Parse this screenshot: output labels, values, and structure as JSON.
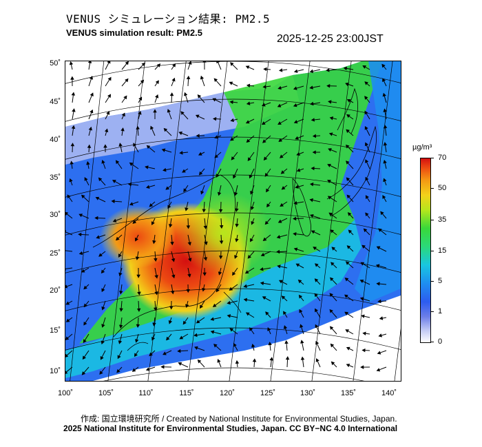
{
  "title_jp": "VENUS シミュレーション結果: PM2.5",
  "title_en": "VENUS simulation result: PM2.5",
  "timestamp": "2025-12-25 23:00JST",
  "lat_labels": [
    "50˚",
    "45˚",
    "40˚",
    "35˚",
    "30˚",
    "25˚",
    "20˚",
    "15˚",
    "10˚"
  ],
  "lon_labels": [
    "100˚",
    "105˚",
    "110˚",
    "115˚",
    "120˚",
    "125˚",
    "130˚",
    "135˚",
    "140˚"
  ],
  "colorbar": {
    "unit": "µg/m³",
    "ticks": [
      "70",
      "50",
      "35",
      "15",
      "5",
      "1",
      "0"
    ],
    "colors": [
      "#d41010",
      "#f49a14",
      "#f2d21a",
      "#39d83a",
      "#19c6e0",
      "#1e8ef0",
      "#2d5cf0",
      "#c8cff5",
      "#ffffff"
    ]
  },
  "credit_line1": "作成: 国立環境研究所 / Created by National Institute for Environmental Studies, Japan.",
  "credit_line2": "2025 National Institute for Environmental Studies, Japan. CC BY−NC 4.0 International"
}
